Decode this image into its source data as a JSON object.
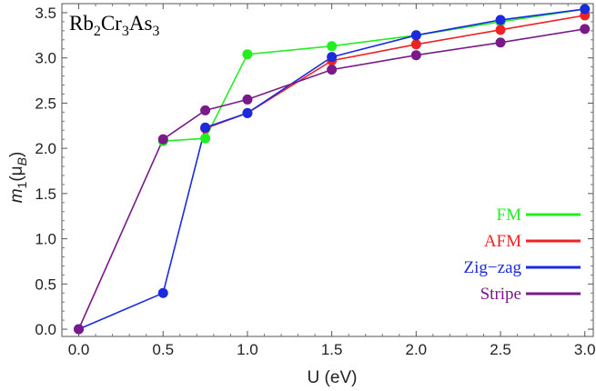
{
  "chart_data": {
    "type": "line",
    "title": "",
    "formula_label": {
      "base1": "Rb",
      "sub1": "2",
      "base2": "Cr",
      "sub2": "3",
      "base3": "As",
      "sub3": "3"
    },
    "xlabel": "U (eV)",
    "ylabel": {
      "main": "m",
      "sub": "1",
      "paren_open": "(",
      "mu": "μ",
      "mu_sub": "B",
      "paren_close": ")"
    },
    "xlim": [
      -0.1,
      3.05
    ],
    "ylim": [
      -0.08,
      3.6
    ],
    "xticks": [
      "0.0",
      "0.5",
      "1.0",
      "1.5",
      "2.0",
      "2.5",
      "3.0"
    ],
    "yticks": [
      "0.0",
      "0.5",
      "1.0",
      "1.5",
      "2.0",
      "2.5",
      "3.0",
      "3.5"
    ],
    "legend_position": "bottom-right",
    "grid": false,
    "series": [
      {
        "name": "FM",
        "color": "#22ee22",
        "x": [
          0.5,
          0.75,
          1.0,
          1.5,
          2.0,
          2.5,
          3.0
        ],
        "y": [
          2.08,
          2.11,
          3.04,
          3.13,
          3.25,
          3.4,
          3.54
        ]
      },
      {
        "name": "AFM",
        "color": "#ee2222",
        "x": [
          0.75,
          1.0,
          1.5,
          2.0,
          2.5,
          3.0
        ],
        "y": [
          2.22,
          2.39,
          2.97,
          3.15,
          3.31,
          3.47
        ]
      },
      {
        "name": "Zig−zag",
        "color": "#1a2bdd",
        "x": [
          0.0,
          0.5,
          0.75,
          1.0,
          1.5,
          2.0,
          2.5,
          3.0
        ],
        "y": [
          0.0,
          0.4,
          2.23,
          2.39,
          3.01,
          3.25,
          3.42,
          3.54
        ]
      },
      {
        "name": "Stripe",
        "color": "#7a1a8a",
        "x": [
          0.0,
          0.5,
          0.75,
          1.0,
          1.5,
          2.0,
          2.5,
          3.0
        ],
        "y": [
          0.0,
          2.1,
          2.42,
          2.54,
          2.87,
          3.03,
          3.17,
          3.32
        ]
      }
    ]
  }
}
